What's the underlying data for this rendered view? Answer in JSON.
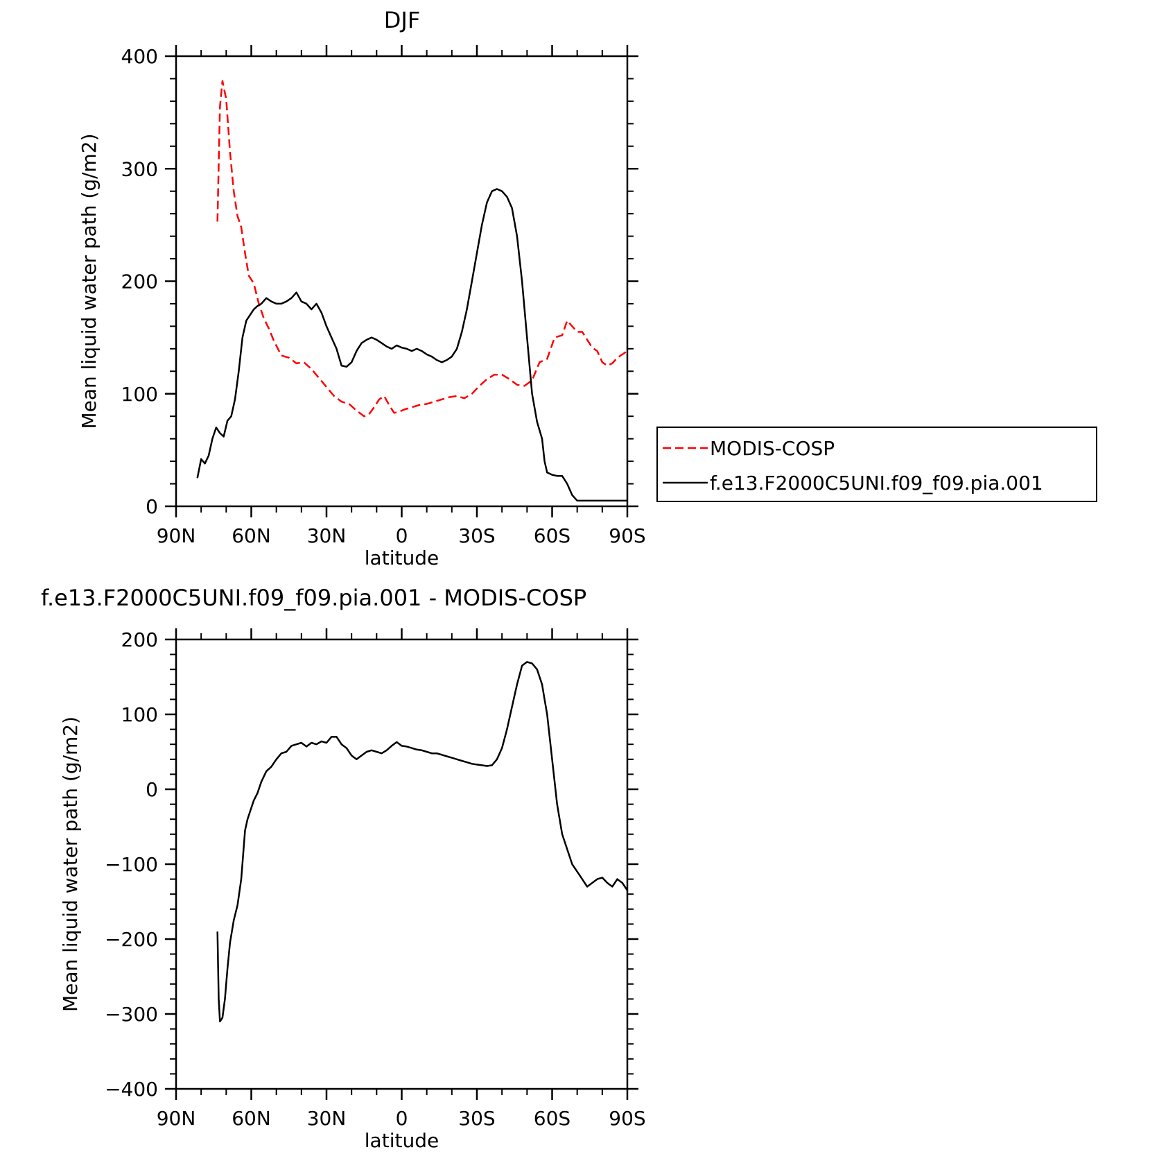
{
  "chart_data": [
    {
      "type": "line",
      "title": "DJF",
      "xlabel": "latitude",
      "ylabel": "Mean liquid water path (g/m2)",
      "xlim": [
        90,
        -90
      ],
      "ylim": [
        0,
        400
      ],
      "x_ticks": [
        90,
        60,
        30,
        0,
        -30,
        -60,
        -90
      ],
      "x_tick_labels": [
        "90N",
        "60N",
        "30N",
        "0",
        "30S",
        "60S",
        "90S"
      ],
      "y_ticks": [
        0,
        100,
        200,
        300,
        400
      ],
      "y_tick_labels": [
        "0",
        "100",
        "200",
        "300",
        "400"
      ],
      "legend_position": "right",
      "series": [
        {
          "name": "MODIS-COSP",
          "color": "#ff0000",
          "dash": "dashed",
          "x": [
            73.5,
            72.5,
            71.5,
            70,
            68.5,
            67,
            65.5,
            64,
            62.5,
            61,
            59,
            57,
            55,
            53,
            51,
            48,
            45,
            42,
            39,
            36,
            33,
            30,
            27,
            24,
            21,
            18,
            15,
            13,
            11,
            9,
            7,
            5,
            3,
            1,
            -1,
            -4,
            -7,
            -10,
            -13,
            -16,
            -19,
            -22,
            -25,
            -28,
            -31,
            -34,
            -37,
            -40,
            -43,
            -46,
            -49,
            -52,
            -55,
            -58,
            -61,
            -64,
            -66,
            -68,
            -70,
            -72,
            -74,
            -76,
            -78,
            -80,
            -82,
            -84,
            -86,
            -88,
            -90
          ],
          "values": [
            253,
            355,
            378,
            362,
            315,
            280,
            258,
            248,
            225,
            205,
            198,
            180,
            167,
            158,
            147,
            134,
            132,
            127,
            128,
            122,
            114,
            106,
            98,
            93,
            91,
            85,
            80,
            82,
            88,
            95,
            98,
            90,
            83,
            84,
            86,
            88,
            90,
            91,
            93,
            95,
            97,
            98,
            96,
            100,
            107,
            113,
            117,
            117,
            113,
            108,
            107,
            112,
            128,
            131,
            150,
            152,
            165,
            160,
            155,
            155,
            148,
            141,
            138,
            128,
            125,
            127,
            132,
            135,
            138
          ]
        },
        {
          "name": "f.e13.F2000C5UNI.f09_f09.pia.001",
          "color": "#000000",
          "dash": "solid",
          "x": [
            81.5,
            80,
            78.5,
            77,
            75.5,
            74,
            72.5,
            71,
            69.5,
            68,
            66.5,
            65,
            63.5,
            62,
            60.5,
            59,
            57.5,
            56,
            54,
            52,
            50,
            48,
            46,
            44,
            42,
            40,
            38,
            36,
            34,
            32,
            30,
            28,
            26,
            24,
            22,
            20,
            18,
            16,
            14,
            12,
            10,
            8,
            6,
            4,
            2,
            0,
            -2,
            -4,
            -6,
            -8,
            -10,
            -12,
            -14,
            -16,
            -18,
            -20,
            -22,
            -24,
            -26,
            -28,
            -30,
            -32,
            -34,
            -36,
            -38,
            -40,
            -42,
            -44,
            -46,
            -48,
            -50,
            -52,
            -54,
            -56,
            -57,
            -58,
            -60,
            -62,
            -64,
            -66,
            -68,
            -70,
            -72,
            -74,
            -76,
            -78,
            -80,
            -82,
            -84,
            -86,
            -88,
            -90
          ],
          "values": [
            25,
            42,
            38,
            45,
            60,
            70,
            65,
            62,
            76,
            80,
            95,
            120,
            150,
            165,
            170,
            175,
            178,
            180,
            185,
            182,
            180,
            180,
            182,
            185,
            190,
            182,
            180,
            175,
            180,
            172,
            160,
            150,
            140,
            125,
            124,
            128,
            138,
            145,
            148,
            150,
            148,
            145,
            142,
            140,
            143,
            141,
            140,
            138,
            140,
            138,
            135,
            133,
            130,
            128,
            130,
            133,
            140,
            155,
            175,
            200,
            225,
            250,
            270,
            280,
            282,
            280,
            275,
            265,
            240,
            200,
            150,
            100,
            75,
            60,
            40,
            30,
            28,
            27,
            27,
            20,
            10,
            5,
            5,
            5,
            5,
            5,
            5,
            5,
            5,
            5,
            5,
            5
          ]
        }
      ]
    },
    {
      "type": "line",
      "title": "f.e13.F2000C5UNI.f09_f09.pia.001 - MODIS-COSP",
      "xlabel": "latitude",
      "ylabel": "Mean liquid water path (g/m2)",
      "xlim": [
        90,
        -90
      ],
      "ylim": [
        -400,
        200
      ],
      "x_ticks": [
        90,
        60,
        30,
        0,
        -30,
        -60,
        -90
      ],
      "x_tick_labels": [
        "90N",
        "60N",
        "30N",
        "0",
        "30S",
        "60S",
        "90S"
      ],
      "y_ticks": [
        -400,
        -300,
        -200,
        -100,
        0,
        100,
        200
      ],
      "y_tick_labels": [
        "−400",
        "−300",
        "−200",
        "−100",
        "0",
        "100",
        "200"
      ],
      "series": [
        {
          "color": "#000000",
          "dash": "solid",
          "x": [
            73.5,
            73,
            72.5,
            71.5,
            70.5,
            69.5,
            68.5,
            67,
            65.5,
            64,
            62.5,
            61.5,
            60.5,
            59,
            57.5,
            56,
            54,
            52,
            50,
            48,
            46,
            44,
            42,
            40,
            38,
            36,
            34,
            32,
            30,
            28,
            26,
            24,
            22,
            20,
            18,
            16,
            14,
            12,
            10,
            8,
            6,
            4,
            2,
            0,
            -2,
            -4,
            -6,
            -8,
            -10,
            -12,
            -14,
            -16,
            -18,
            -20,
            -22,
            -24,
            -26,
            -28,
            -30,
            -32,
            -34,
            -36,
            -38,
            -40,
            -42,
            -44,
            -46,
            -48,
            -50,
            -52,
            -54,
            -56,
            -57,
            -58,
            -60,
            -62,
            -64,
            -66,
            -68,
            -70,
            -72,
            -74,
            -76,
            -78,
            -80,
            -82,
            -84,
            -86,
            -88,
            -90
          ],
          "values": [
            -190,
            -280,
            -310,
            -305,
            -280,
            -240,
            -205,
            -175,
            -155,
            -120,
            -55,
            -40,
            -30,
            -15,
            -5,
            10,
            24,
            30,
            40,
            48,
            50,
            58,
            60,
            62,
            57,
            62,
            60,
            64,
            62,
            70,
            70,
            60,
            55,
            45,
            40,
            45,
            50,
            52,
            50,
            48,
            52,
            58,
            63,
            58,
            57,
            55,
            53,
            52,
            50,
            48,
            48,
            46,
            44,
            42,
            40,
            38,
            36,
            34,
            33,
            32,
            31,
            32,
            40,
            55,
            80,
            110,
            140,
            165,
            170,
            168,
            160,
            140,
            120,
            100,
            40,
            -20,
            -60,
            -80,
            -100,
            -110,
            -120,
            -130,
            -125,
            -120,
            -118,
            -125,
            -130,
            -120,
            -125,
            -135
          ]
        }
      ]
    }
  ],
  "legend": {
    "items": [
      {
        "label": "MODIS-COSP",
        "color": "#ff0000",
        "dash": "dashed"
      },
      {
        "label": "f.e13.F2000C5UNI.f09_f09.pia.001",
        "color": "#000000",
        "dash": "solid"
      }
    ]
  }
}
